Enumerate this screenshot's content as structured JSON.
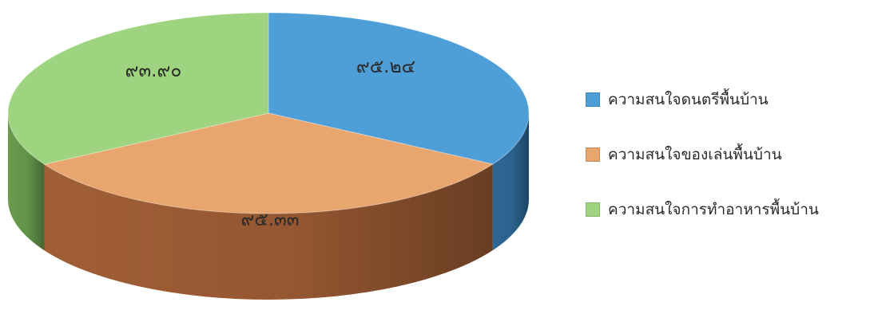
{
  "chart_data": {
    "type": "pie",
    "title": "",
    "series": [
      {
        "name": "ความสนใจดนตรีพื้นบ้าน",
        "value": 95.24,
        "label": "๙๕.๒๔",
        "color": "#4E9FD8",
        "side_color": "#2F6E9E"
      },
      {
        "name": "ความสนใจของเล่นพื้นบ้าน",
        "value": 93.9,
        "label": "๙๓.๙๐",
        "color": "#E9A56E",
        "side_color": "#A96338"
      },
      {
        "name": "ความสนใจการทำอาหารพื้นบ้าน",
        "value": 95.33,
        "label": "๙๕.๓๓",
        "color": "#9ED47F",
        "side_color": "#6FA452"
      }
    ],
    "start_angle_deg": -90,
    "direction": "clockwise",
    "style": "3d",
    "legend_position": "right"
  }
}
